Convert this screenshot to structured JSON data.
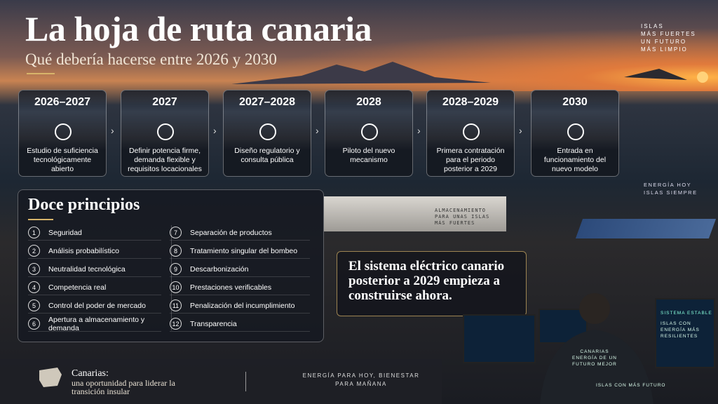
{
  "header": {
    "title": "La hoja de ruta canaria",
    "subtitle": "Qué debería hacerse entre 2026 y 2030",
    "tagline": [
      "ISLAS",
      "MÁS FUERTES",
      "UN FUTURO",
      "MÁS LIMPIO"
    ]
  },
  "timeline": [
    {
      "period": "2026–2027",
      "text": "Estudio de suficiencia tecnológicamente abierto"
    },
    {
      "period": "2027",
      "text": "Definir potencia firme, demanda flexible y requisitos locacionales"
    },
    {
      "period": "2027–2028",
      "text": "Diseño regulatorio y consulta pública"
    },
    {
      "period": "2028",
      "text": "Piloto del nuevo mecanismo"
    },
    {
      "period": "2028–2029",
      "text": "Primera contratación para el periodo posterior a 2029"
    },
    {
      "period": "2030",
      "text": "Entrada en funcionamiento del nuevo modelo"
    }
  ],
  "sign": [
    "ENERGÍA HOY",
    "ISLAS SIEMPRE"
  ],
  "principles": {
    "title": "Doce principios",
    "items": [
      {
        "number": "1",
        "label": "Seguridad"
      },
      {
        "number": "2",
        "label": "Análisis probabilístico"
      },
      {
        "number": "3",
        "label": "Neutralidad tecnológica"
      },
      {
        "number": "4",
        "label": "Competencia real"
      },
      {
        "number": "5",
        "label": "Control del poder de mercado"
      },
      {
        "number": "6",
        "label": "Apertura a almacenamiento y demanda"
      },
      {
        "number": "7",
        "label": "Separación de productos"
      },
      {
        "number": "8",
        "label": "Tratamiento singular del bombeo"
      },
      {
        "number": "9",
        "label": "Descarbonización"
      },
      {
        "number": "10",
        "label": "Prestaciones verificables"
      },
      {
        "number": "11",
        "label": "Penalización del incumplimiento"
      },
      {
        "number": "12",
        "label": "Transparencia"
      }
    ]
  },
  "storage_sign": "ALMACENAMIENTO PARA UNAS ISLAS MÁS FUERTES",
  "callout": "El sistema eléctrico canario posterior a 2029 empieza a construirse ahora.",
  "screens": {
    "status": "SISTEMA ESTABLE",
    "message": "ISLAS CON ENERGÍA MÁS RESILIENTES",
    "jacket": "CANARIAS ENERGÍA DE UN FUTURO MEJOR",
    "desk": "ISLAS CON MÁS FUTURO"
  },
  "footer": {
    "heading": "Canarias:",
    "text": "una oportunidad para liderar la transición insular",
    "motto": "ENERGÍA PARA HOY, BIENESTAR PARA MAÑANA"
  }
}
